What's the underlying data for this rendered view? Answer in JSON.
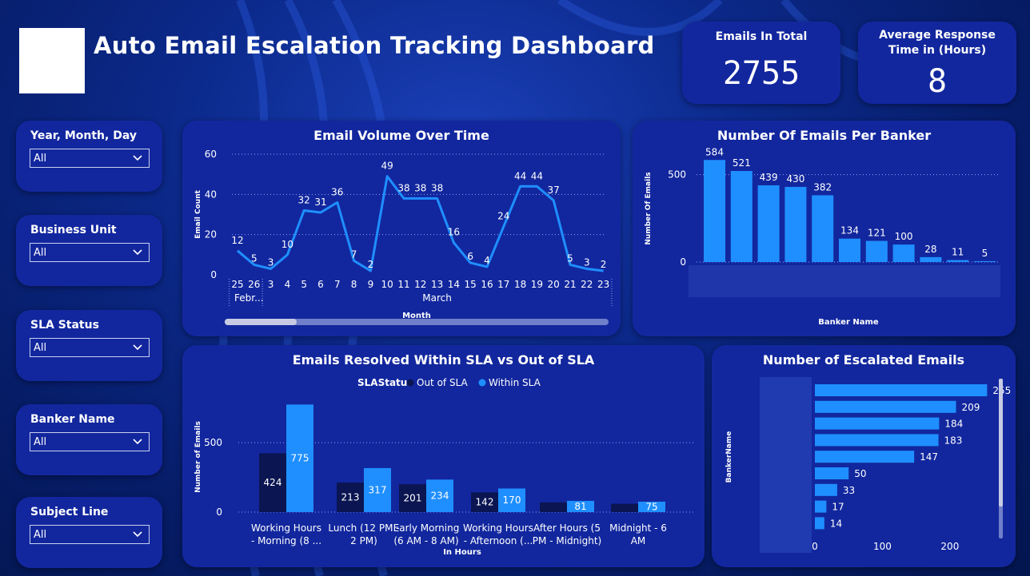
{
  "header": {
    "title": "Auto Email Escalation Tracking Dashboard"
  },
  "kpis": [
    {
      "label": "Emails In Total",
      "value": "2755"
    },
    {
      "label": "Average Response Time in (Hours)",
      "value": "8"
    }
  ],
  "slicers": [
    {
      "label": "Year, Month, Day",
      "value": "All"
    },
    {
      "label": "Business Unit",
      "value": "All"
    },
    {
      "label": "SLA Status",
      "value": "All"
    },
    {
      "label": "Banker Name",
      "value": "All"
    },
    {
      "label": "Subject Line",
      "value": "All"
    }
  ],
  "colors": {
    "accent": "#1f8fff",
    "dark": "#0a1552",
    "panel": "#12279e"
  },
  "chart_data": [
    {
      "type": "line",
      "title": "Email Volume Over Time",
      "xlabel": "Month",
      "ylabel": "Email Count",
      "ylim": [
        0,
        60
      ],
      "yticks": [
        "0",
        "20",
        "40",
        "60"
      ],
      "x": [
        "25",
        "26",
        "3",
        "4",
        "5",
        "6",
        "7",
        "8",
        "9",
        "10",
        "11",
        "12",
        "13",
        "14",
        "15",
        "16",
        "17",
        "18",
        "19",
        "20",
        "21",
        "22",
        "23"
      ],
      "x_groups": [
        {
          "label": "Febr...",
          "from": 0,
          "to": 1
        },
        {
          "label": "March",
          "from": 2,
          "to": 22
        }
      ],
      "values": [
        12,
        5,
        3,
        10,
        32,
        31,
        36,
        7,
        2,
        49,
        38,
        38,
        38,
        16,
        6,
        4,
        24,
        44,
        44,
        37,
        5,
        3,
        2
      ],
      "grid": true
    },
    {
      "type": "bar",
      "title": "Number Of Emails Per Banker",
      "xlabel": "Banker Name",
      "ylabel": "Number Of Emails",
      "ylim": [
        0,
        640
      ],
      "yticks": [
        "0",
        "500"
      ],
      "values": [
        584,
        521,
        439,
        430,
        382,
        134,
        121,
        100,
        28,
        11,
        5
      ],
      "grid": true
    },
    {
      "type": "bar",
      "title": "Emails Resolved Within SLA vs Out of SLA",
      "legend_title": "SLAStatus",
      "xlabel": "In Hours",
      "ylabel": "Number of Emails",
      "ylim": [
        0,
        800
      ],
      "yticks": [
        "0",
        "500"
      ],
      "categories_l1": [
        "Working Hours",
        "Lunch (12 PM -",
        "Early Morning",
        "Working Hours",
        "After Hours (5",
        "Midnight - 6"
      ],
      "categories_l2": [
        "- Morning (8 ...",
        "2 PM)",
        "(6 AM - 8 AM)",
        "- Afternoon (...",
        "PM - Midnight)",
        "AM"
      ],
      "series": [
        {
          "name": "Out of SLA",
          "values": [
            424,
            213,
            201,
            142,
            70,
            60
          ],
          "labels": [
            "424",
            "213",
            "201",
            "142",
            "",
            ""
          ],
          "color": "#0a1552"
        },
        {
          "name": "Within SLA",
          "values": [
            775,
            317,
            234,
            170,
            81,
            75
          ],
          "labels": [
            "775",
            "317",
            "234",
            "170",
            "81",
            "75"
          ],
          "color": "#1f8fff"
        }
      ],
      "grid": true
    },
    {
      "type": "bar",
      "orientation": "horizontal",
      "title": "Number of Escalated Emails",
      "ylabel": "BankerName",
      "xlim": [
        0,
        270
      ],
      "xticks": [
        "0",
        "100",
        "200"
      ],
      "values": [
        255,
        209,
        184,
        183,
        147,
        50,
        33,
        17,
        14
      ]
    }
  ]
}
